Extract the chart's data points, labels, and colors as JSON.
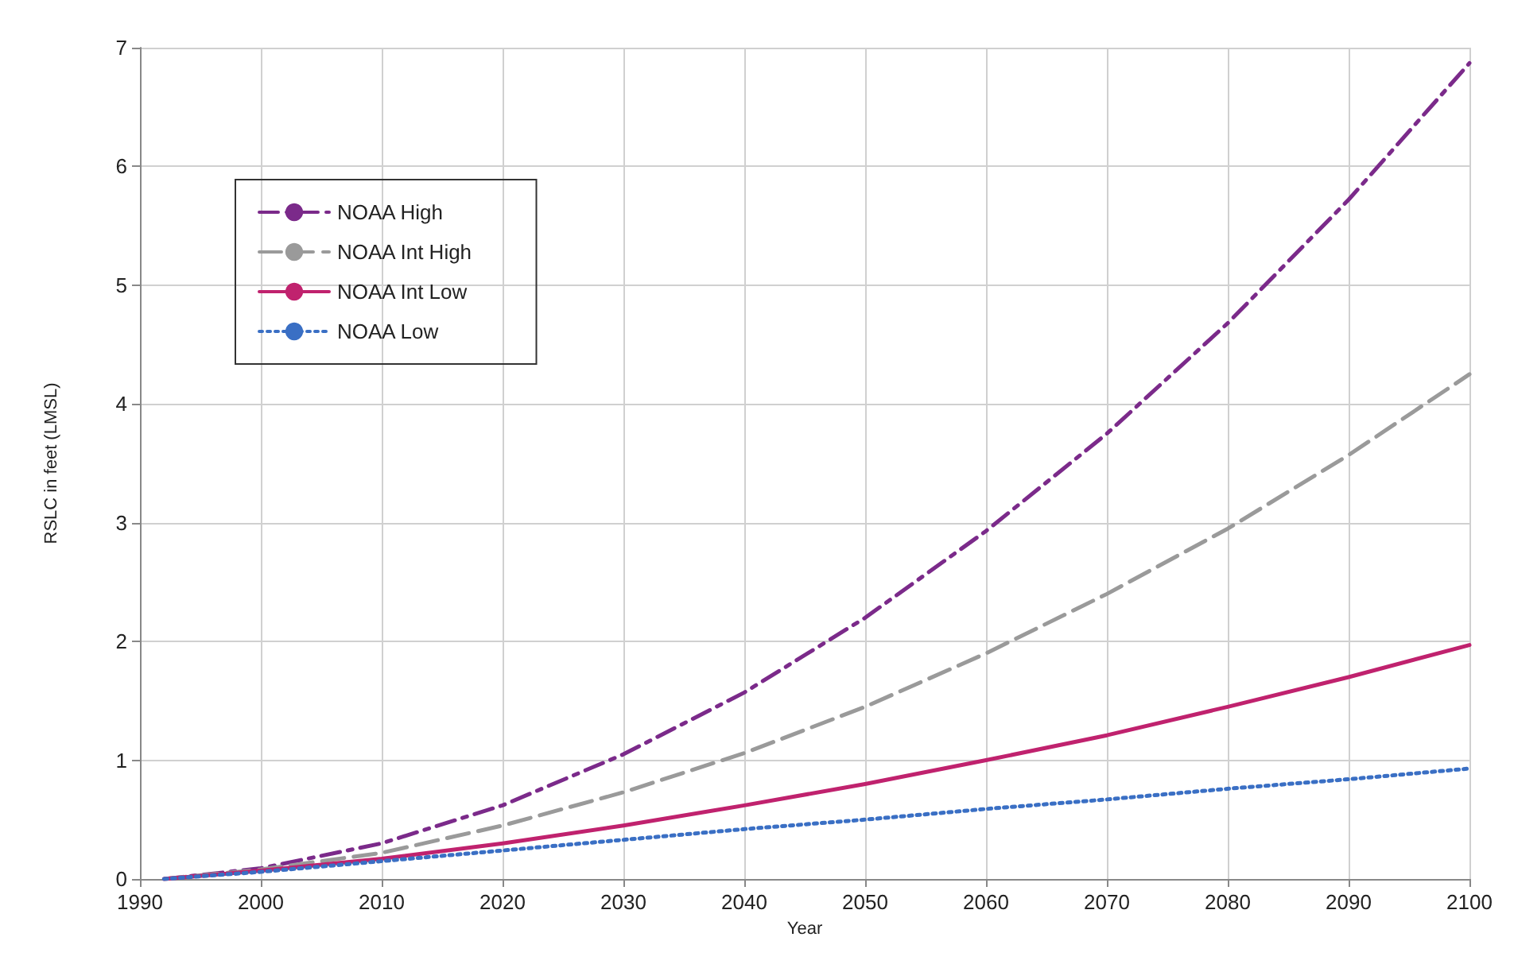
{
  "chart_data": {
    "type": "line",
    "xlabel": "Year",
    "ylabel": "RSLC in feet (LMSL)",
    "x": [
      1992,
      2000,
      2010,
      2020,
      2030,
      2040,
      2050,
      2060,
      2070,
      2080,
      2090,
      2100
    ],
    "xlim": [
      1990,
      2100
    ],
    "xticks": [
      1990,
      2000,
      2010,
      2020,
      2030,
      2040,
      2050,
      2060,
      2070,
      2080,
      2090,
      2100
    ],
    "ylim": [
      0,
      7
    ],
    "yticks": [
      0,
      1,
      2,
      3,
      4,
      5,
      6,
      7
    ],
    "grid": true,
    "legend": "top left",
    "marker": "none",
    "series": [
      {
        "name": "NOAA High",
        "color": "#7b2a8a",
        "line_style": "dashdot",
        "values": [
          0,
          0.09,
          0.3,
          0.62,
          1.05,
          1.57,
          2.2,
          2.93,
          3.75,
          4.68,
          5.72,
          6.87
        ]
      },
      {
        "name": "NOAA Int High",
        "color": "#9a9a9a",
        "line_style": "dashed",
        "values": [
          0,
          0.08,
          0.22,
          0.45,
          0.73,
          1.06,
          1.45,
          1.9,
          2.4,
          2.95,
          3.57,
          4.25
        ]
      },
      {
        "name": "NOAA Int Low",
        "color": "#c0226e",
        "line_style": "solid",
        "values": [
          0,
          0.07,
          0.17,
          0.3,
          0.45,
          0.62,
          0.8,
          1.0,
          1.21,
          1.45,
          1.7,
          1.97
        ]
      },
      {
        "name": "NOAA Low",
        "color": "#3a6fc4",
        "line_style": "dotted",
        "values": [
          0,
          0.06,
          0.15,
          0.24,
          0.33,
          0.42,
          0.5,
          0.59,
          0.67,
          0.76,
          0.84,
          0.93
        ]
      }
    ]
  }
}
